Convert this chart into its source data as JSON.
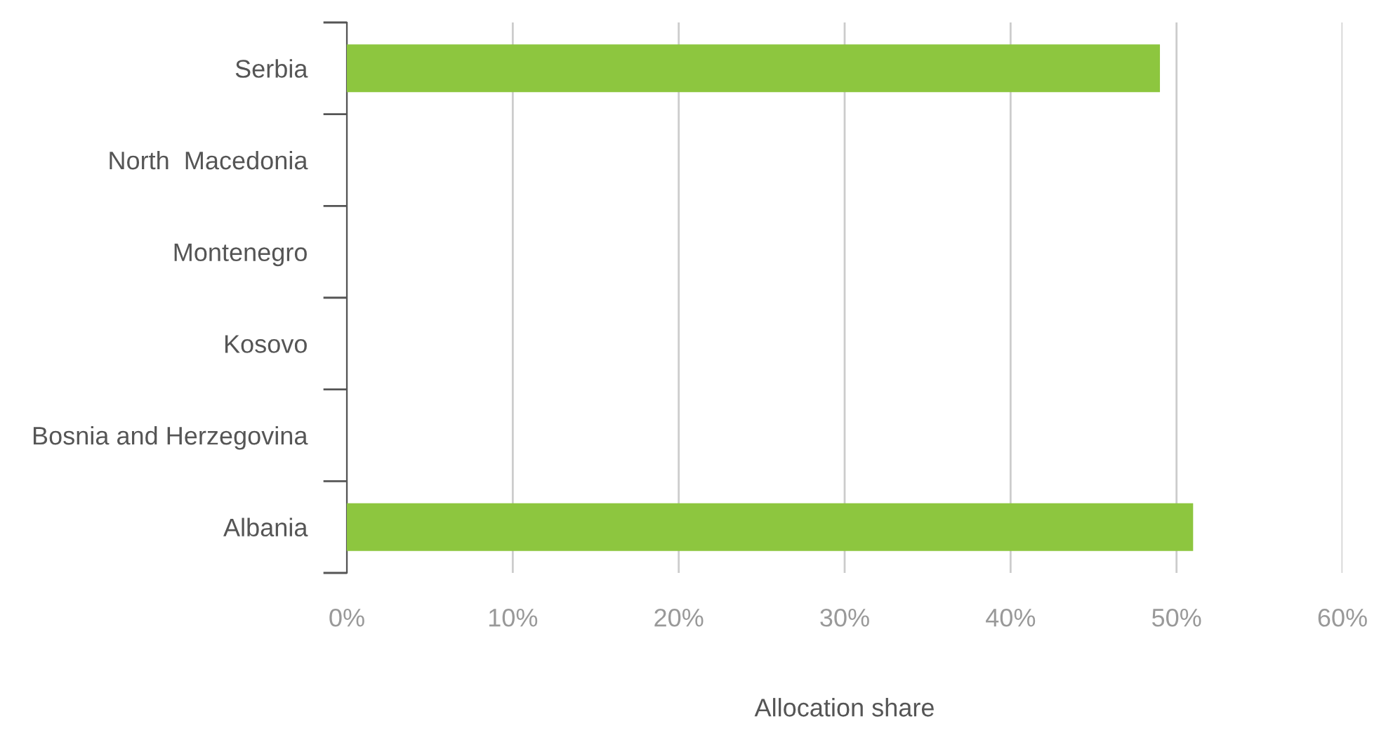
{
  "chart_data": {
    "type": "bar",
    "orientation": "horizontal",
    "xlabel": "Allocation share",
    "categories": [
      "Serbia",
      "North  Macedonia",
      "Montenegro",
      "Kosovo",
      "Bosnia and Herzegovina",
      "Albania"
    ],
    "values": [
      49,
      0,
      0,
      0,
      0,
      51
    ],
    "color": "#8dc63f",
    "xlim": [
      0,
      60
    ],
    "xticks": [
      {
        "value": 0,
        "label": "0%"
      },
      {
        "value": 10,
        "label": "10%"
      },
      {
        "value": 20,
        "label": "20%"
      },
      {
        "value": 30,
        "label": "30%"
      },
      {
        "value": 40,
        "label": "40%"
      },
      {
        "value": 50,
        "label": "50%"
      },
      {
        "value": 60,
        "label": "60%"
      }
    ],
    "grid": "x"
  }
}
